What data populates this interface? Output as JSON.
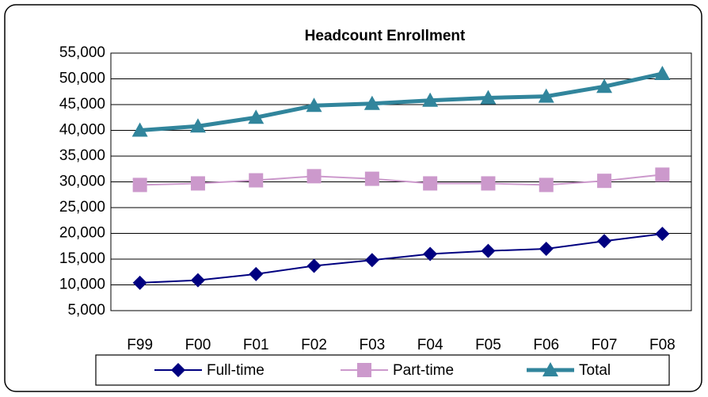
{
  "chart_data": {
    "type": "line",
    "title": "Headcount  Enrollment",
    "categories": [
      "F99",
      "F00",
      "F01",
      "F02",
      "F03",
      "F04",
      "F05",
      "F06",
      "F07",
      "F08"
    ],
    "series": [
      {
        "name": "Full-time",
        "color": "#000080",
        "marker": "diamond",
        "values": [
          10400,
          10900,
          12100,
          13700,
          14800,
          16000,
          16600,
          17000,
          18500,
          19900
        ]
      },
      {
        "name": "Part-time",
        "color": "#cc99cc",
        "marker": "square",
        "values": [
          29400,
          29700,
          30300,
          31100,
          30600,
          29700,
          29700,
          29400,
          30200,
          31400
        ]
      },
      {
        "name": "Total",
        "color": "#31859c",
        "marker": "triangle",
        "values": [
          40000,
          40800,
          42500,
          44800,
          45200,
          45800,
          46300,
          46600,
          48500,
          51000
        ]
      }
    ],
    "ylim": [
      5000,
      55000
    ],
    "yticks": [
      {
        "value": 5000,
        "label": "5,000"
      },
      {
        "value": 10000,
        "label": "10,000"
      },
      {
        "value": 15000,
        "label": "15,000"
      },
      {
        "value": 20000,
        "label": "20,000"
      },
      {
        "value": 25000,
        "label": "25,000"
      },
      {
        "value": 30000,
        "label": "30,000"
      },
      {
        "value": 35000,
        "label": "35,000"
      },
      {
        "value": 40000,
        "label": "40,000"
      },
      {
        "value": 45000,
        "label": "45,000"
      },
      {
        "value": 50000,
        "label": "50,000"
      },
      {
        "value": 55000,
        "label": "55,000"
      }
    ],
    "grid": true,
    "legend": "bottom"
  }
}
